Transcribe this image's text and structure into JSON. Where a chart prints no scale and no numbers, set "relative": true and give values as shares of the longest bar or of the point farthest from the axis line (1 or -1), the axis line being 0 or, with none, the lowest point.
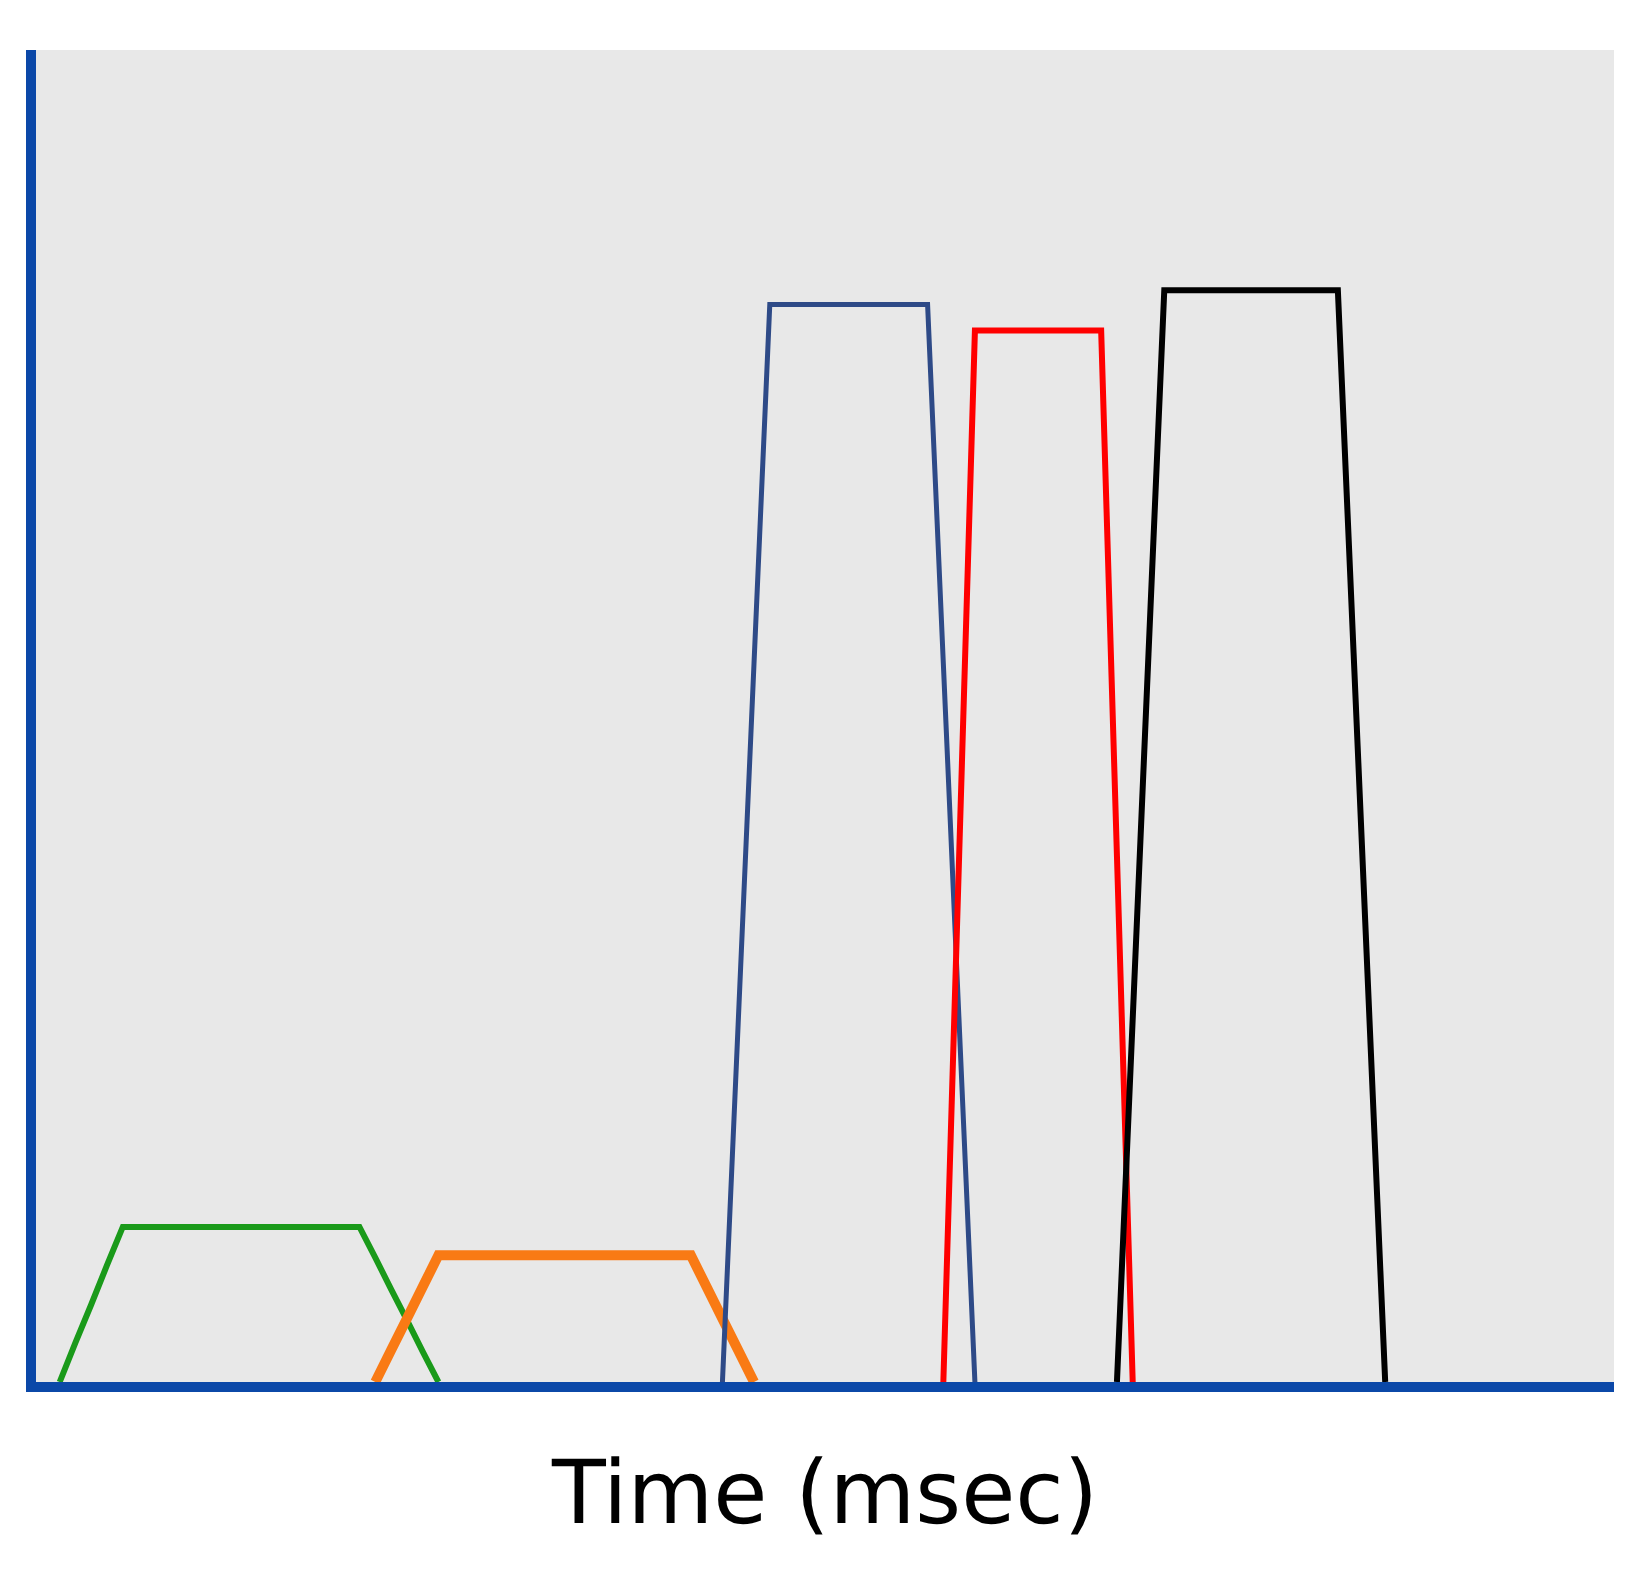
{
  "chart_data": {
    "type": "line",
    "relative": true,
    "xlabel": "Time (msec)",
    "grid": false,
    "marker": "none",
    "line_style": "solid",
    "categories": [
      null,
      null,
      null,
      null,
      null,
      null,
      null,
      null,
      null,
      null,
      null,
      null,
      null,
      null,
      null,
      null,
      null,
      null,
      null,
      null,
      null,
      null,
      null,
      null,
      null,
      null,
      null,
      null,
      null,
      null,
      null,
      null,
      null,
      null,
      null,
      null,
      null,
      null,
      null,
      null,
      null,
      null,
      null,
      null,
      null,
      null,
      null,
      null,
      null,
      null,
      null,
      null,
      null,
      null,
      null,
      null,
      null,
      null,
      null,
      null,
      null,
      null,
      null,
      null,
      null,
      null,
      null,
      null,
      null,
      null,
      null,
      null,
      null,
      null,
      null,
      null,
      null,
      null,
      null,
      null,
      null,
      null,
      null,
      null,
      null,
      null,
      null,
      null,
      null,
      null,
      null,
      null,
      null,
      null,
      null,
      null,
      null,
      null,
      null,
      null
    ],
    "series": [
      {
        "color": "#1a9a1a",
        "values": [
          null,
          0,
          0.036,
          0.071,
          0.107,
          0.142,
          0.142,
          0.142,
          0.142,
          0.142,
          0.142,
          0.142,
          0.142,
          0.142,
          0.142,
          0.142,
          0.142,
          0.142,
          0.142,
          0.142,
          0.142,
          0.114,
          0.085,
          0.057,
          0.028,
          0,
          null,
          null,
          null,
          null,
          null,
          null,
          null,
          null,
          null,
          null,
          null,
          null,
          null,
          null,
          null,
          null,
          null,
          null,
          null,
          null,
          null,
          null,
          null,
          null,
          null,
          null,
          null,
          null,
          null,
          null,
          null,
          null,
          null,
          null,
          null,
          null,
          null,
          null,
          null,
          null,
          null,
          null,
          null,
          null,
          null,
          null,
          null,
          null,
          null,
          null,
          null,
          null,
          null,
          null,
          null,
          null,
          null,
          null,
          null,
          null,
          null,
          null,
          null,
          null,
          null,
          null,
          null,
          null,
          null,
          null,
          null,
          null,
          null,
          null
        ]
      },
      {
        "color": "#f97a14",
        "values": [
          null,
          null,
          null,
          null,
          null,
          null,
          null,
          null,
          null,
          null,
          null,
          null,
          null,
          null,
          null,
          null,
          null,
          null,
          null,
          null,
          null,
          0,
          0.029,
          0.058,
          0.087,
          0.116,
          0.116,
          0.116,
          0.116,
          0.116,
          0.116,
          0.116,
          0.116,
          0.116,
          0.116,
          0.116,
          0.116,
          0.116,
          0.116,
          0.116,
          0.116,
          0.116,
          0.087,
          0.058,
          0.029,
          0,
          null,
          null,
          null,
          null,
          null,
          null,
          null,
          null,
          null,
          null,
          null,
          null,
          null,
          null,
          null,
          null,
          null,
          null,
          null,
          null,
          null,
          null,
          null,
          null,
          null,
          null,
          null,
          null,
          null,
          null,
          null,
          null,
          null,
          null,
          null,
          null,
          null,
          null,
          null,
          null,
          null,
          null,
          null,
          null,
          null,
          null,
          null,
          null,
          null,
          null,
          null,
          null,
          null,
          null
        ]
      },
      {
        "color": "#2e4a87",
        "values": [
          null,
          null,
          null,
          null,
          null,
          null,
          null,
          null,
          null,
          null,
          null,
          null,
          null,
          null,
          null,
          null,
          null,
          null,
          null,
          null,
          null,
          null,
          null,
          null,
          null,
          null,
          null,
          null,
          null,
          null,
          null,
          null,
          null,
          null,
          null,
          null,
          null,
          null,
          null,
          null,
          null,
          null,
          null,
          0,
          0.329,
          0.658,
          0.987,
          0.987,
          0.987,
          0.987,
          0.987,
          0.987,
          0.987,
          0.987,
          0.987,
          0.987,
          0.987,
          0.658,
          0.329,
          0,
          null,
          null,
          null,
          null,
          null,
          null,
          null,
          null,
          null,
          null,
          null,
          null,
          null,
          null,
          null,
          null,
          null,
          null,
          null,
          null,
          null,
          null,
          null,
          null,
          null,
          null,
          null,
          null,
          null,
          null,
          null,
          null,
          null,
          null,
          null,
          null,
          null,
          null,
          null,
          null
        ]
      },
      {
        "color": "#ff0000",
        "values": [
          null,
          null,
          null,
          null,
          null,
          null,
          null,
          null,
          null,
          null,
          null,
          null,
          null,
          null,
          null,
          null,
          null,
          null,
          null,
          null,
          null,
          null,
          null,
          null,
          null,
          null,
          null,
          null,
          null,
          null,
          null,
          null,
          null,
          null,
          null,
          null,
          null,
          null,
          null,
          null,
          null,
          null,
          null,
          null,
          null,
          null,
          null,
          null,
          null,
          null,
          null,
          null,
          null,
          null,
          null,
          null,
          null,
          0,
          0.482,
          0.963,
          0.963,
          0.963,
          0.963,
          0.963,
          0.963,
          0.963,
          0.963,
          0.963,
          0.482,
          0,
          null,
          null,
          null,
          null,
          null,
          null,
          null,
          null,
          null,
          null,
          null,
          null,
          null,
          null,
          null,
          null,
          null,
          null,
          null,
          null,
          null,
          null,
          null,
          null,
          null,
          null,
          null,
          null,
          null,
          null
        ]
      },
      {
        "color": "#000000",
        "values": [
          null,
          null,
          null,
          null,
          null,
          null,
          null,
          null,
          null,
          null,
          null,
          null,
          null,
          null,
          null,
          null,
          null,
          null,
          null,
          null,
          null,
          null,
          null,
          null,
          null,
          null,
          null,
          null,
          null,
          null,
          null,
          null,
          null,
          null,
          null,
          null,
          null,
          null,
          null,
          null,
          null,
          null,
          null,
          null,
          null,
          null,
          null,
          null,
          null,
          null,
          null,
          null,
          null,
          null,
          null,
          null,
          null,
          null,
          null,
          null,
          null,
          null,
          null,
          null,
          null,
          null,
          null,
          null,
          0,
          0.333,
          0.667,
          1,
          1,
          1,
          1,
          1,
          1,
          1,
          1,
          1,
          1,
          1,
          1,
          0.667,
          0.333,
          0,
          null,
          null,
          null,
          null,
          null,
          null,
          null,
          null,
          null,
          null,
          null,
          null,
          null,
          null
        ]
      }
    ]
  }
}
